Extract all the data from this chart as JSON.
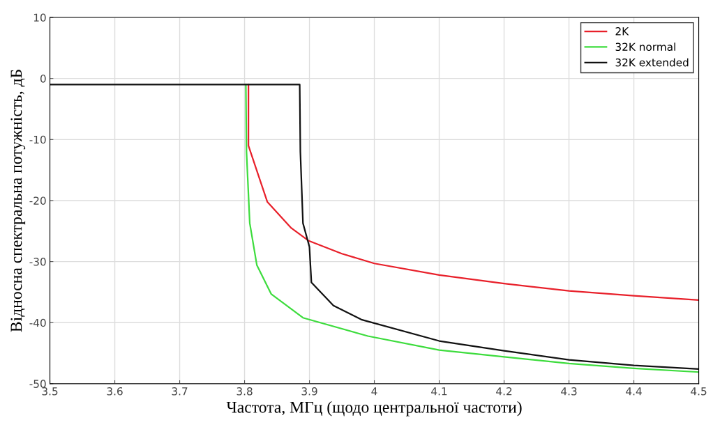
{
  "chart_data": {
    "type": "line",
    "xlabel": "Частота, МГц (щодо центральної частоти)",
    "ylabel": "Відносна спектральна потужність, дБ",
    "xlim": [
      3.5,
      4.5
    ],
    "xticks": [
      3.5,
      3.6,
      3.7,
      3.8,
      3.9,
      {
        "value": 4,
        "label": "4"
      },
      4.1,
      4.2,
      4.3,
      4.4,
      4.5
    ],
    "ylim": [
      -50,
      10
    ],
    "yticks": [
      -50,
      -40,
      -30,
      -20,
      -10,
      0,
      10
    ],
    "grid": true,
    "legend": "top right",
    "line_style": "solid",
    "marker": "none",
    "series": [
      {
        "name": "2K",
        "color": "#e8202a",
        "x": [
          3.806,
          3.806,
          3.835,
          3.872,
          3.899,
          3.95,
          4.0,
          4.1,
          4.2,
          4.3,
          4.4,
          4.5
        ],
        "values": [
          -1,
          -11,
          -20.2,
          -24.5,
          -26.6,
          -28.7,
          -30.3,
          -32.2,
          -33.6,
          -34.8,
          -35.6,
          -36.3
        ]
      },
      {
        "name": "32K normal",
        "color": "#3ddc3d",
        "x": [
          3.802,
          3.803,
          3.808,
          3.819,
          3.841,
          3.89,
          3.99,
          4.1,
          4.2,
          4.3,
          4.4,
          4.5
        ],
        "values": [
          -1,
          -12,
          -23.7,
          -30.6,
          -35.3,
          -39.2,
          -42.2,
          -44.5,
          -45.6,
          -46.7,
          -47.5,
          -48.1
        ]
      },
      {
        "name": "32K extended",
        "color": "#111111",
        "x": [
          3.5,
          3.885,
          3.886,
          3.89,
          3.9,
          3.903,
          3.937,
          3.98,
          4.1,
          4.2,
          4.3,
          4.4,
          4.5
        ],
        "values": [
          -1,
          -1,
          -12,
          -23.7,
          -27.6,
          -33.4,
          -37.2,
          -39.5,
          -43,
          -44.6,
          -46.1,
          -47,
          -47.6
        ]
      }
    ]
  }
}
